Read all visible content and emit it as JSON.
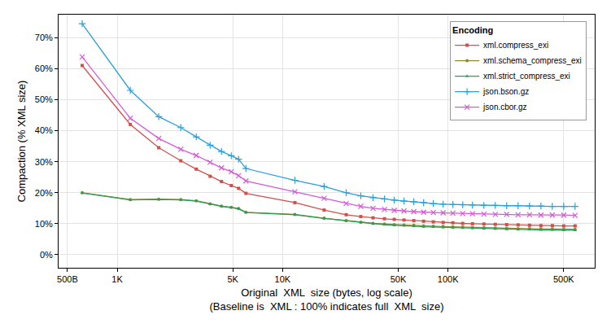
{
  "chart_data": {
    "type": "line",
    "x_label": "Original  XML  size (bytes, log scale)",
    "x_label_note": "(Baseline is  XML : 100% indicates full  XML  size)",
    "y_label": "Compaction (% XML size)",
    "legend_title": "Encoding",
    "legend": "top-right",
    "log": "x",
    "grid": true,
    "xlim": [
      442,
      771000
    ],
    "xticks": [
      {
        "value": 500,
        "label": "500B"
      },
      {
        "value": 1000,
        "label": "1K"
      },
      {
        "value": 5000,
        "label": "5K"
      },
      {
        "value": 10000,
        "label": "10K"
      },
      {
        "value": 50000,
        "label": "50K"
      },
      {
        "value": 100000,
        "label": "100K"
      },
      {
        "value": 500000,
        "label": "500K"
      }
    ],
    "ylim": [
      -4.2,
      77.4
    ],
    "yticks": [
      {
        "value": 0,
        "label": "0%"
      },
      {
        "value": 10,
        "label": "10%"
      },
      {
        "value": 20,
        "label": "20%"
      },
      {
        "value": 30,
        "label": "30%"
      },
      {
        "value": 40,
        "label": "40%"
      },
      {
        "value": 50,
        "label": "50%"
      },
      {
        "value": 60,
        "label": "60%"
      },
      {
        "value": 70,
        "label": "70%"
      }
    ],
    "x": [
      614,
      1200,
      1783,
      2423,
      3005,
      3645,
      4270,
      4893,
      5420,
      6000,
      11860,
      17820,
      24230,
      29700,
      35200,
      41300,
      47300,
      54200,
      62100,
      71200,
      81500,
      93400,
      107000,
      122700,
      140600,
      164800,
      193100,
      226300,
      265300,
      311000,
      364500,
      427200,
      500700,
      586700
    ],
    "series": [
      {
        "name": "xml.compress_exi",
        "color": "#d0514b",
        "marker": "square",
        "values": [
          61,
          42,
          34.5,
          30.3,
          27.6,
          25.3,
          23.6,
          22.3,
          21.4,
          19.8,
          16.8,
          14.4,
          12.9,
          12.3,
          11.9,
          11.6,
          11.4,
          11.2,
          11.0,
          10.8,
          10.6,
          10.4,
          10.3,
          10.1,
          10.0,
          9.9,
          9.8,
          9.7,
          9.6,
          9.5,
          9.4,
          9.4,
          9.3,
          9.3
        ]
      },
      {
        "name": "xml.schema_compress_exi",
        "color": "#8f8a2c",
        "marker": "circle",
        "values": [
          20,
          17.8,
          17.9,
          17.8,
          17.4,
          16.4,
          15.7,
          15.3,
          14.9,
          13.7,
          13.0,
          11.8,
          11.0,
          10.5,
          10.1,
          9.9,
          9.7,
          9.6,
          9.5,
          9.3,
          9.2,
          9.1,
          9.0,
          8.9,
          8.8,
          8.7,
          8.6,
          8.5,
          8.4,
          8.4,
          8.3,
          8.3,
          8.2,
          8.2
        ]
      },
      {
        "name": "xml.strict_compress_exi",
        "color": "#2a9e55",
        "marker": "triangle",
        "values": [
          19.9,
          17.7,
          17.8,
          17.7,
          17.3,
          16.3,
          15.6,
          15.2,
          14.8,
          13.6,
          12.9,
          11.7,
          10.9,
          10.4,
          10.0,
          9.7,
          9.5,
          9.4,
          9.2,
          9.0,
          8.9,
          8.8,
          8.7,
          8.6,
          8.5,
          8.4,
          8.3,
          8.2,
          8.1,
          8.1,
          8.0,
          8.0,
          7.9,
          7.9
        ]
      },
      {
        "name": "json.bson.gz",
        "color": "#2b9fd8",
        "marker": "cross",
        "values": [
          74.5,
          53,
          44.5,
          41,
          38,
          35.3,
          33.3,
          31.9,
          30.8,
          27.8,
          24,
          22,
          20,
          19,
          18.4,
          18,
          17.6,
          17.3,
          17.1,
          16.8,
          16.5,
          16.3,
          16.2,
          16.1,
          16.0,
          15.9,
          15.9,
          15.8,
          15.8,
          15.7,
          15.7,
          15.6,
          15.6,
          15.6
        ]
      },
      {
        "name": "json.cbor.gz",
        "color": "#d65ad6",
        "marker": "x",
        "values": [
          63.8,
          44,
          37.5,
          34,
          32,
          29.8,
          28,
          26.8,
          25.5,
          23.8,
          20.3,
          18.2,
          16.5,
          15.6,
          15,
          14.6,
          14.3,
          14.1,
          13.9,
          13.7,
          13.6,
          13.5,
          13.4,
          13.3,
          13.2,
          13.1,
          13.0,
          13.0,
          12.9,
          12.9,
          12.8,
          12.8,
          12.8,
          12.7
        ]
      }
    ]
  }
}
